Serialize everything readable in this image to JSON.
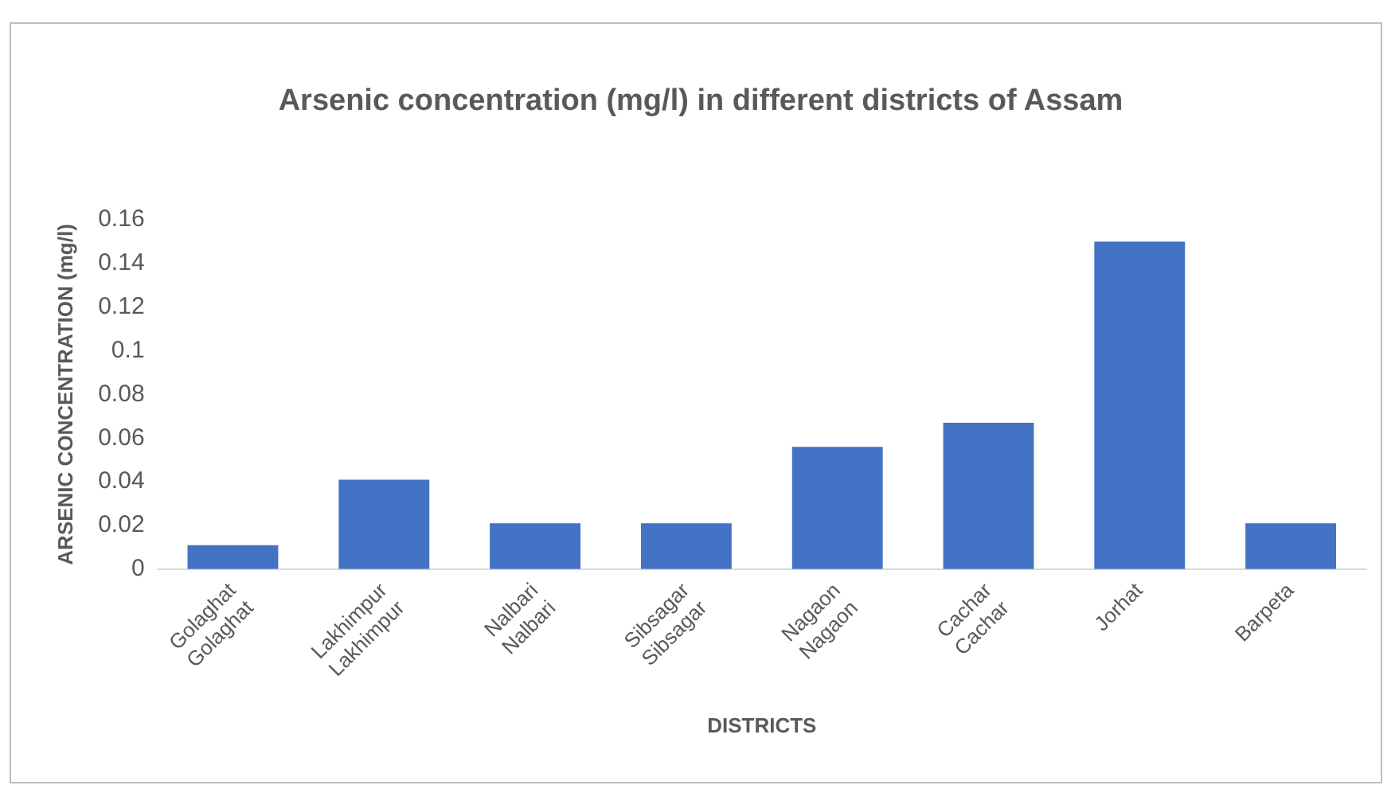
{
  "chart_data": {
    "type": "bar",
    "title": "Arsenic concentration (mg/l) in different districts of Assam",
    "xlabel": "DISTRICTS",
    "ylabel": "ARSENIC CONCENTRATION (mg/l)",
    "categories": [
      "Golaghat Golaghat",
      "Lakhimpur Lakhimpur",
      "Nalbari Nalbari",
      "Sibsagar Sibsagar",
      "Nagaon Nagaon",
      "Cachar Cachar",
      "Jorhat",
      "Barpeta"
    ],
    "values": [
      0.011,
      0.041,
      0.021,
      0.021,
      0.056,
      0.067,
      0.15,
      0.021
    ],
    "color": "#4472c4",
    "ylim": [
      0,
      0.16
    ],
    "yticks": [
      0,
      0.02,
      0.04,
      0.06,
      0.08,
      0.1,
      0.12,
      0.14,
      0.16
    ],
    "grid": false,
    "legend": false
  }
}
